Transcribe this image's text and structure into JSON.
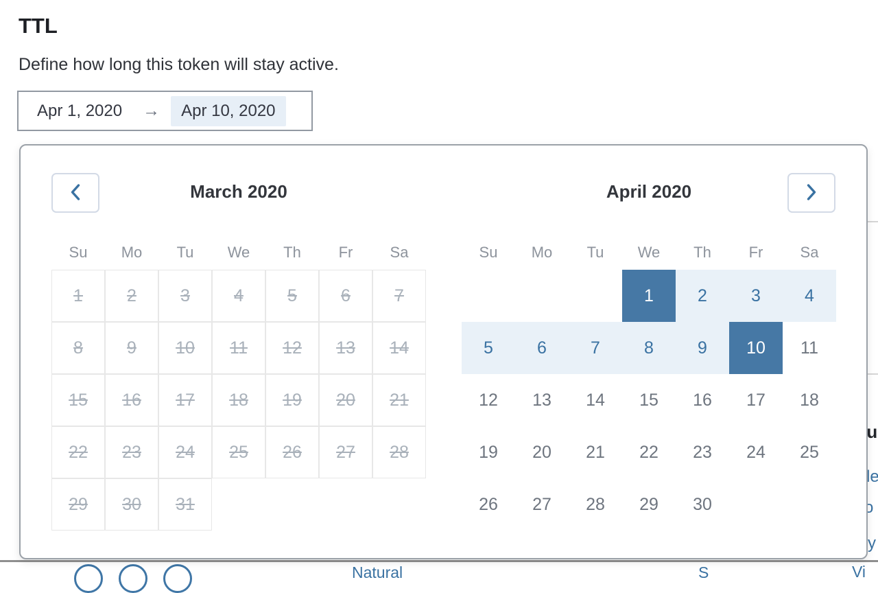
{
  "page": {
    "title": "TTL",
    "description": "Define how long this token will stay active."
  },
  "date_input": {
    "start_date": "Apr 1, 2020",
    "arrow": "→",
    "end_date": "Apr 10, 2020"
  },
  "calendar": {
    "weekdays": [
      "Su",
      "Mo",
      "Tu",
      "We",
      "Th",
      "Fr",
      "Sa"
    ],
    "months": [
      {
        "title": "March 2020",
        "grid_borders": true,
        "weeks": [
          [
            {
              "day": "1",
              "state": "disabled"
            },
            {
              "day": "2",
              "state": "disabled"
            },
            {
              "day": "3",
              "state": "disabled"
            },
            {
              "day": "4",
              "state": "disabled"
            },
            {
              "day": "5",
              "state": "disabled"
            },
            {
              "day": "6",
              "state": "disabled"
            },
            {
              "day": "7",
              "state": "disabled"
            }
          ],
          [
            {
              "day": "8",
              "state": "disabled"
            },
            {
              "day": "9",
              "state": "disabled"
            },
            {
              "day": "10",
              "state": "disabled"
            },
            {
              "day": "11",
              "state": "disabled"
            },
            {
              "day": "12",
              "state": "disabled"
            },
            {
              "day": "13",
              "state": "disabled"
            },
            {
              "day": "14",
              "state": "disabled"
            }
          ],
          [
            {
              "day": "15",
              "state": "disabled"
            },
            {
              "day": "16",
              "state": "disabled"
            },
            {
              "day": "17",
              "state": "disabled"
            },
            {
              "day": "18",
              "state": "disabled"
            },
            {
              "day": "19",
              "state": "disabled"
            },
            {
              "day": "20",
              "state": "disabled"
            },
            {
              "day": "21",
              "state": "disabled"
            }
          ],
          [
            {
              "day": "22",
              "state": "disabled"
            },
            {
              "day": "23",
              "state": "disabled"
            },
            {
              "day": "24",
              "state": "disabled"
            },
            {
              "day": "25",
              "state": "disabled"
            },
            {
              "day": "26",
              "state": "disabled"
            },
            {
              "day": "27",
              "state": "disabled"
            },
            {
              "day": "28",
              "state": "disabled"
            }
          ],
          [
            {
              "day": "29",
              "state": "disabled"
            },
            {
              "day": "30",
              "state": "disabled"
            },
            {
              "day": "31",
              "state": "disabled"
            },
            null,
            null,
            null,
            null
          ]
        ]
      },
      {
        "title": "April 2020",
        "grid_borders": false,
        "weeks": [
          [
            null,
            null,
            null,
            {
              "day": "1",
              "state": "selected"
            },
            {
              "day": "2",
              "state": "range"
            },
            {
              "day": "3",
              "state": "range"
            },
            {
              "day": "4",
              "state": "range"
            }
          ],
          [
            {
              "day": "5",
              "state": "range"
            },
            {
              "day": "6",
              "state": "range"
            },
            {
              "day": "7",
              "state": "range"
            },
            {
              "day": "8",
              "state": "range"
            },
            {
              "day": "9",
              "state": "range"
            },
            {
              "day": "10",
              "state": "selected"
            },
            {
              "day": "11",
              "state": "normal"
            }
          ],
          [
            {
              "day": "12",
              "state": "normal"
            },
            {
              "day": "13",
              "state": "normal"
            },
            {
              "day": "14",
              "state": "normal"
            },
            {
              "day": "15",
              "state": "normal"
            },
            {
              "day": "16",
              "state": "normal"
            },
            {
              "day": "17",
              "state": "normal"
            },
            {
              "day": "18",
              "state": "normal"
            }
          ],
          [
            {
              "day": "19",
              "state": "normal"
            },
            {
              "day": "20",
              "state": "normal"
            },
            {
              "day": "21",
              "state": "normal"
            },
            {
              "day": "22",
              "state": "normal"
            },
            {
              "day": "23",
              "state": "normal"
            },
            {
              "day": "24",
              "state": "normal"
            },
            {
              "day": "25",
              "state": "normal"
            }
          ],
          [
            {
              "day": "26",
              "state": "normal"
            },
            {
              "day": "27",
              "state": "normal"
            },
            {
              "day": "28",
              "state": "normal"
            },
            {
              "day": "29",
              "state": "normal"
            },
            {
              "day": "30",
              "state": "normal"
            },
            null,
            null
          ]
        ]
      }
    ]
  },
  "colors": {
    "selected_bg": "#4678a5",
    "range_bg": "#e9f1f8",
    "accent_text": "#3a72a2",
    "disabled_text": "#a9b1ba",
    "end_date_highlight": "#e7eff7"
  },
  "background_fragments": {
    "right_heading": "Su",
    "right_links": [
      "le",
      "o",
      "y"
    ],
    "bottom_links": [
      "Natural",
      "S",
      "Vi"
    ],
    "bottom_circle_count": 3
  }
}
